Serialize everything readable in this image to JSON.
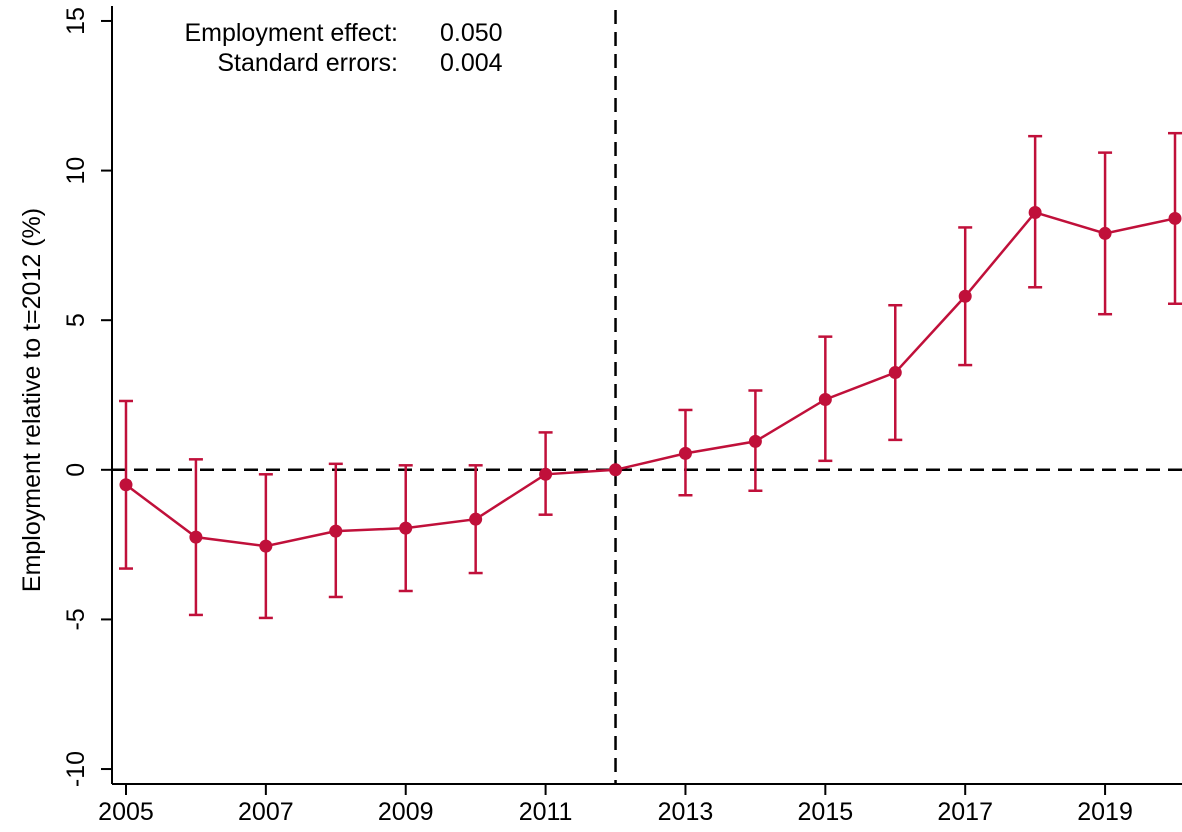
{
  "chart_data": {
    "type": "line",
    "title": "",
    "xlabel": "",
    "ylabel": "Employment relative to t=2012 (%)",
    "xlim": [
      2004.8,
      2020.1
    ],
    "ylim": [
      -10.5,
      15.5
    ],
    "x_ticks": [
      2005,
      2007,
      2009,
      2011,
      2013,
      2015,
      2017,
      2019
    ],
    "y_ticks": [
      -10,
      -5,
      0,
      5,
      10,
      15
    ],
    "y_tick_labels": [
      "-10",
      "-5",
      "0",
      "5",
      "10",
      "15"
    ],
    "grid": false,
    "legend": "none",
    "reference_lines": {
      "horizontal_y": 0,
      "vertical_x": 2012,
      "style": "dashed"
    },
    "series": [
      {
        "color": "#c0103a",
        "marker": "circle",
        "errorbar": true,
        "points": [
          {
            "x": 2005,
            "y": -0.5,
            "lo": -3.3,
            "hi": 2.3
          },
          {
            "x": 2006,
            "y": -2.25,
            "lo": -4.85,
            "hi": 0.35
          },
          {
            "x": 2007,
            "y": -2.55,
            "lo": -4.95,
            "hi": -0.15
          },
          {
            "x": 2008,
            "y": -2.05,
            "lo": -4.25,
            "hi": 0.2
          },
          {
            "x": 2009,
            "y": -1.95,
            "lo": -4.05,
            "hi": 0.15
          },
          {
            "x": 2010,
            "y": -1.65,
            "lo": -3.45,
            "hi": 0.15
          },
          {
            "x": 2011,
            "y": -0.15,
            "lo": -1.5,
            "hi": 1.25
          },
          {
            "x": 2012,
            "y": 0.0,
            "lo": 0.0,
            "hi": 0.0
          },
          {
            "x": 2013,
            "y": 0.55,
            "lo": -0.85,
            "hi": 2.0
          },
          {
            "x": 2014,
            "y": 0.95,
            "lo": -0.7,
            "hi": 2.65
          },
          {
            "x": 2015,
            "y": 2.35,
            "lo": 0.3,
            "hi": 4.45
          },
          {
            "x": 2016,
            "y": 3.25,
            "lo": 1.0,
            "hi": 5.5
          },
          {
            "x": 2017,
            "y": 5.8,
            "lo": 3.5,
            "hi": 8.1
          },
          {
            "x": 2018,
            "y": 8.6,
            "lo": 6.1,
            "hi": 11.15
          },
          {
            "x": 2019,
            "y": 7.9,
            "lo": 5.2,
            "hi": 10.6
          },
          {
            "x": 2020,
            "y": 8.4,
            "lo": 5.55,
            "hi": 11.25
          }
        ]
      }
    ],
    "annotations": [
      {
        "label": "Employment effect:",
        "value": "0.050"
      },
      {
        "label": "Standard errors:",
        "value": "0.004"
      }
    ]
  }
}
